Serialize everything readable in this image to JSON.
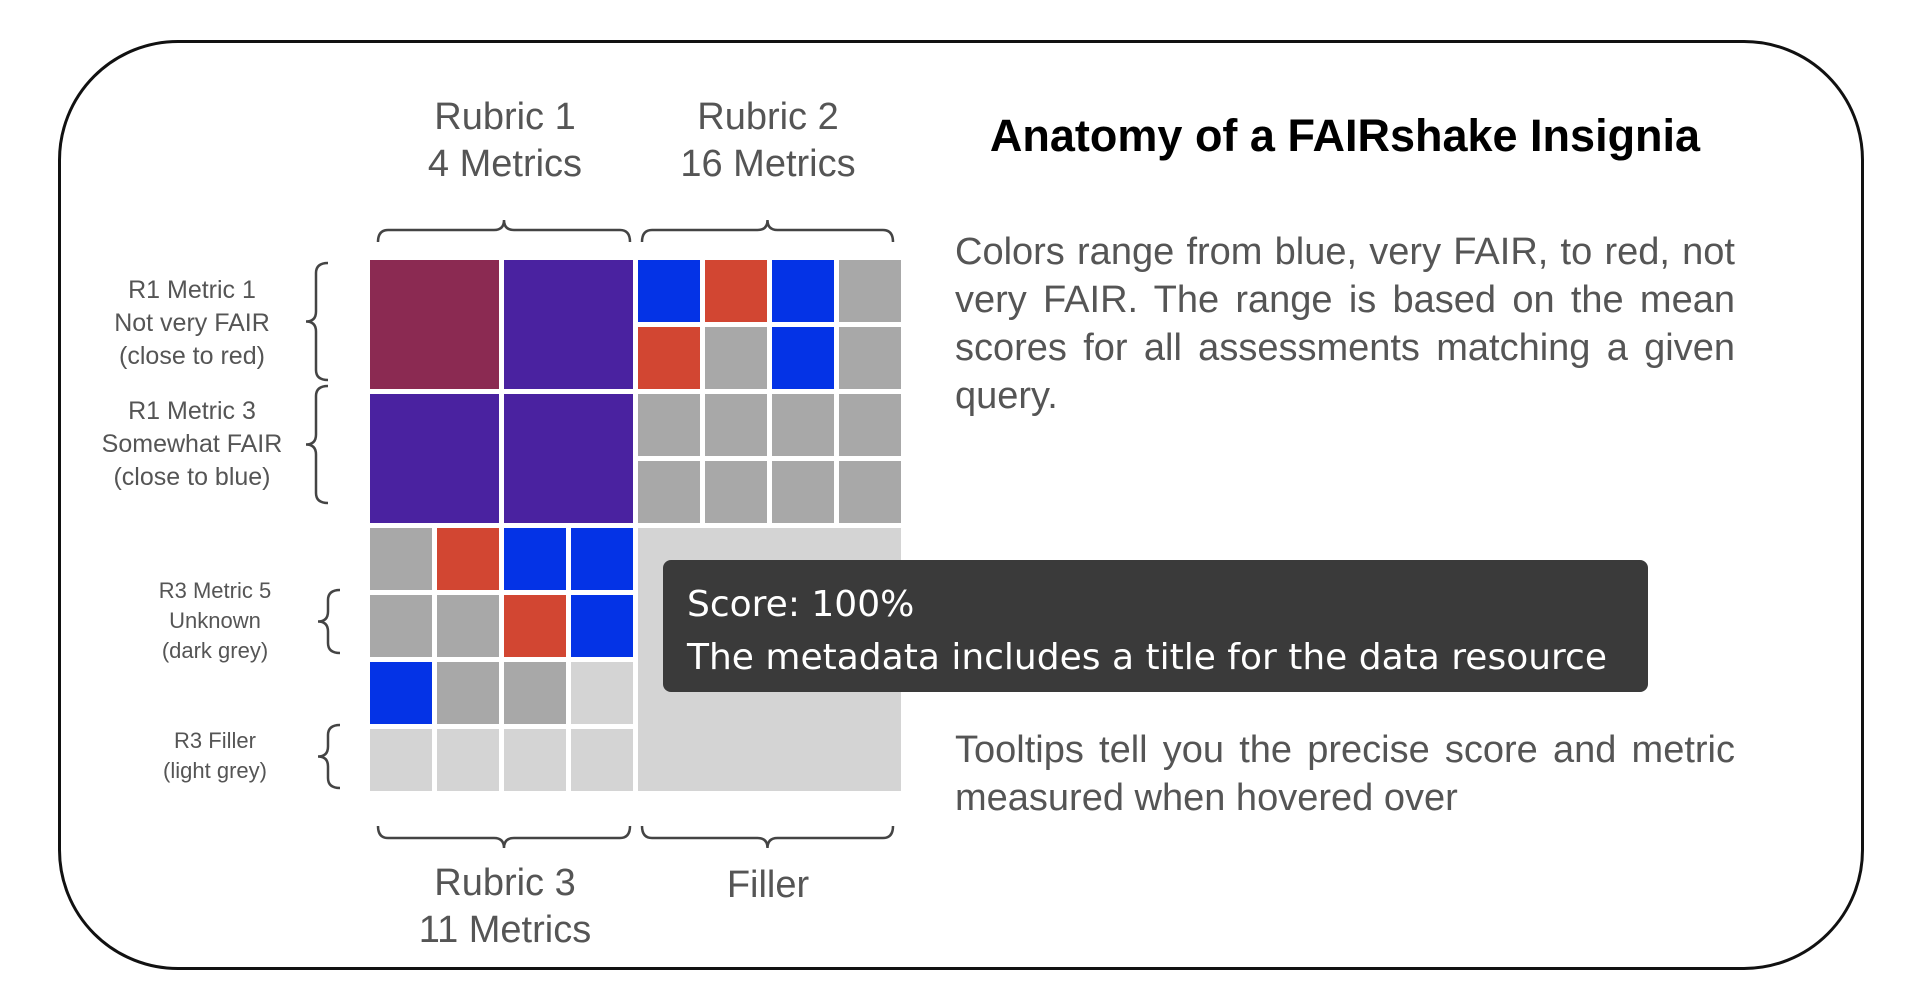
{
  "title": "Anatomy of a FAIRshake Insignia",
  "description": "Colors range from blue, very FAIR, to red, not very FAIR. The range is based on the mean scores for all assessments matching a given query.",
  "tooltip_note": "Tooltips tell you the precise score and metric measured when hovered over",
  "tooltip": {
    "score": "Score: 100%",
    "text": "The metadata includes a title for the data resource"
  },
  "top_labels": [
    {
      "line1": "Rubric 1",
      "line2": "4 Metrics"
    },
    {
      "line1": "Rubric 2",
      "line2": "16 Metrics"
    }
  ],
  "bottom_labels": [
    {
      "line1": "Rubric 3",
      "line2": "11 Metrics"
    },
    {
      "line1": "Filler",
      "line2": ""
    }
  ],
  "side_labels": [
    {
      "lines": [
        "R1 Metric 1",
        "Not very FAIR",
        "(close to red)"
      ]
    },
    {
      "lines": [
        "R1 Metric 3",
        "Somewhat FAIR",
        "(close to blue)"
      ]
    },
    {
      "lines": [
        "R3 Metric 5",
        "Unknown",
        "(dark grey)"
      ]
    },
    {
      "lines": [
        "R3 Filler",
        "(light grey)"
      ]
    }
  ],
  "colors": {
    "dark_red": "#8b2a52",
    "purple": "#4a22a0",
    "blue": "#0433e6",
    "red": "#d24632",
    "grey": "#a8a8a8",
    "light_grey": "#d4d4d4"
  },
  "insignia": {
    "rubric1": [
      [
        "dark_red",
        "purple"
      ],
      [
        "purple",
        "purple"
      ]
    ],
    "rubric2": [
      [
        "blue",
        "red",
        "blue",
        "grey"
      ],
      [
        "red",
        "grey",
        "blue",
        "grey"
      ],
      [
        "grey",
        "grey",
        "grey",
        "grey"
      ],
      [
        "grey",
        "grey",
        "grey",
        "grey"
      ]
    ],
    "rubric3": [
      [
        "grey",
        "red",
        "blue",
        "blue"
      ],
      [
        "grey",
        "grey",
        "red",
        "blue"
      ],
      [
        "blue",
        "grey",
        "grey",
        "light_grey"
      ],
      [
        "light_grey",
        "light_grey",
        "light_grey",
        "light_grey"
      ]
    ],
    "filler": "light_grey"
  }
}
